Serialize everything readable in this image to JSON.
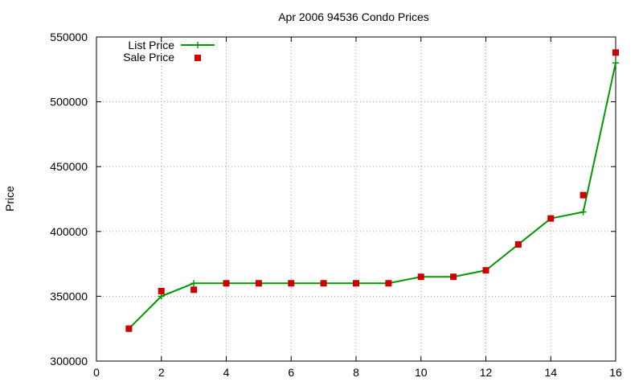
{
  "chart_data": {
    "type": "line",
    "title": "Apr 2006 94536 Condo Prices",
    "xlabel": "",
    "ylabel": "Price",
    "xlim": [
      0,
      16
    ],
    "ylim": [
      300000,
      550000
    ],
    "xticks": [
      0,
      2,
      4,
      6,
      8,
      10,
      12,
      14,
      16
    ],
    "yticks": [
      300000,
      350000,
      400000,
      450000,
      500000,
      550000
    ],
    "grid": true,
    "legend_position": "top-left",
    "series": [
      {
        "name": "List Price",
        "style": "line-with-plus-markers",
        "color": "#009900",
        "x": [
          1,
          2,
          3,
          4,
          5,
          6,
          7,
          8,
          9,
          10,
          11,
          12,
          13,
          14,
          15,
          16
        ],
        "values": [
          325000,
          350000,
          360000,
          360000,
          360000,
          360000,
          360000,
          360000,
          360000,
          365000,
          365000,
          370000,
          390000,
          410000,
          415000,
          530000
        ]
      },
      {
        "name": "Sale Price",
        "style": "square-markers",
        "color": "#cc0000",
        "x": [
          1,
          2,
          3,
          4,
          5,
          6,
          7,
          8,
          9,
          10,
          11,
          12,
          13,
          14,
          15,
          16
        ],
        "values": [
          325000,
          354000,
          355000,
          360000,
          360000,
          360000,
          360000,
          360000,
          360000,
          365000,
          365000,
          370000,
          390000,
          410000,
          428000,
          538000
        ]
      }
    ]
  }
}
